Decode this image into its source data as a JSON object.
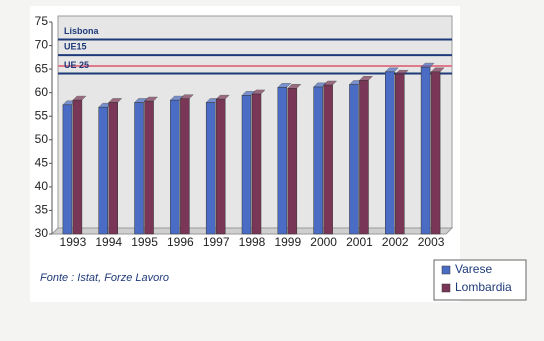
{
  "chart_data": {
    "type": "bar",
    "categories": [
      "1993",
      "1994",
      "1995",
      "1996",
      "1997",
      "1998",
      "1999",
      "2000",
      "2001",
      "2002",
      "2003"
    ],
    "series": [
      {
        "name": "Varese",
        "color": "#4a6cc4",
        "values": [
          57,
          56.5,
          57.5,
          58,
          57.5,
          59,
          60.7,
          60.8,
          61.3,
          64,
          65
        ]
      },
      {
        "name": "Lombardia",
        "color": "#7a3656",
        "values": [
          58,
          57.5,
          57.8,
          58.3,
          58.2,
          59.3,
          60.5,
          61.2,
          62.2,
          63.5,
          64
        ]
      }
    ],
    "reference_lines": [
      {
        "label": "Lisbona",
        "value": 70,
        "color": "#1f3a7a"
      },
      {
        "label": "UE15",
        "value": 66.7,
        "color": "#1f3a7a"
      },
      {
        "value": 64.4,
        "color": "#e07a8a"
      },
      {
        "label": "UE 25",
        "value": 62.8,
        "color": "#1f3a7a"
      }
    ],
    "ylim": [
      30,
      75
    ],
    "yticks": [
      30,
      35,
      40,
      45,
      50,
      55,
      60,
      65,
      70,
      75
    ],
    "grid": false,
    "source": "Fonte :  Istat, Forze Lavoro",
    "legend": "bottom-right"
  }
}
